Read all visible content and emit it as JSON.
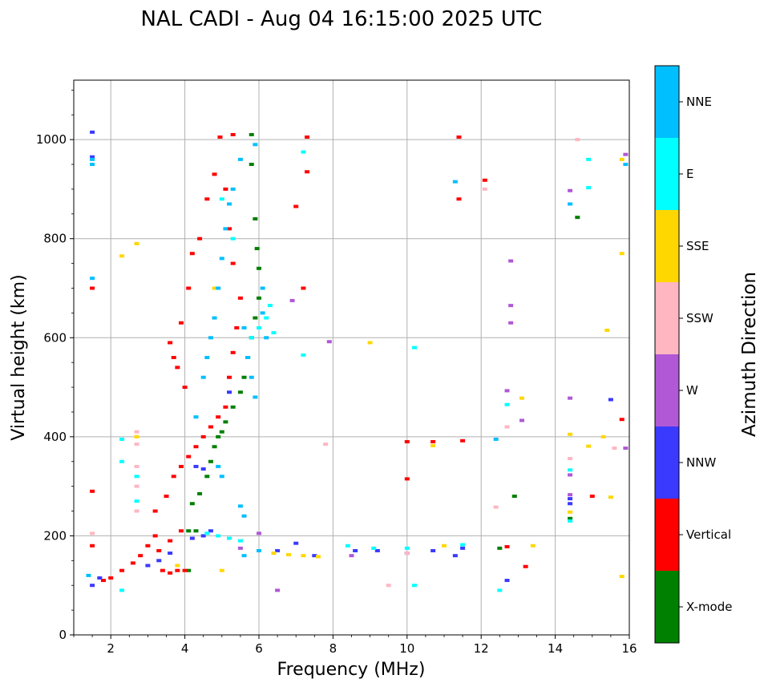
{
  "chart_data": {
    "type": "scatter",
    "title": "NAL CADI - Aug 04 16:15:00 2025 UTC",
    "xlabel": "Frequency (MHz)",
    "ylabel": "Virtual height (km)",
    "xlim": [
      1.0,
      16.0
    ],
    "ylim": [
      0,
      1120
    ],
    "x_ticks": [
      2,
      4,
      6,
      8,
      10,
      12,
      14,
      16
    ],
    "y_ticks": [
      0,
      200,
      400,
      600,
      800,
      1000
    ],
    "grid": true,
    "colorbar": {
      "label": "Azimuth Direction",
      "categories": [
        {
          "name": "X-mode",
          "color": "#008000"
        },
        {
          "name": "Vertical",
          "color": "#ff0000"
        },
        {
          "name": "NNW",
          "color": "#3a3aff"
        },
        {
          "name": "W",
          "color": "#b058d6"
        },
        {
          "name": "SSW",
          "color": "#ffb6c1"
        },
        {
          "name": "SSE",
          "color": "#ffd700"
        },
        {
          "name": "E",
          "color": "#00ffff"
        },
        {
          "name": "NNE",
          "color": "#00bfff"
        }
      ]
    },
    "series": [
      {
        "name": "X-mode",
        "points": [
          [
            4.2,
            265
          ],
          [
            4.4,
            285
          ],
          [
            4.6,
            320
          ],
          [
            4.7,
            350
          ],
          [
            4.8,
            380
          ],
          [
            4.9,
            400
          ],
          [
            5.0,
            410
          ],
          [
            5.1,
            430
          ],
          [
            5.3,
            460
          ],
          [
            5.5,
            490
          ],
          [
            5.6,
            520
          ],
          [
            5.7,
            560
          ],
          [
            5.8,
            600
          ],
          [
            5.9,
            640
          ],
          [
            6.0,
            680
          ],
          [
            6.0,
            740
          ],
          [
            5.95,
            780
          ],
          [
            5.9,
            840
          ],
          [
            5.8,
            950
          ],
          [
            5.8,
            1010
          ],
          [
            4.1,
            210
          ],
          [
            4.3,
            210
          ],
          [
            12.5,
            175
          ],
          [
            12.9,
            280
          ],
          [
            14.6,
            843
          ],
          [
            14.4,
            235
          ],
          [
            4.1,
            130
          ]
        ]
      },
      {
        "name": "Vertical",
        "points": [
          [
            1.5,
            290
          ],
          [
            1.5,
            700
          ],
          [
            1.5,
            180
          ],
          [
            1.8,
            110
          ],
          [
            2.0,
            115
          ],
          [
            2.3,
            130
          ],
          [
            2.6,
            145
          ],
          [
            2.8,
            160
          ],
          [
            3.0,
            180
          ],
          [
            3.2,
            200
          ],
          [
            3.4,
            130
          ],
          [
            3.6,
            125
          ],
          [
            3.8,
            130
          ],
          [
            4.0,
            130
          ],
          [
            3.2,
            250
          ],
          [
            3.5,
            280
          ],
          [
            3.7,
            320
          ],
          [
            3.9,
            340
          ],
          [
            4.1,
            360
          ],
          [
            4.3,
            380
          ],
          [
            4.5,
            400
          ],
          [
            4.7,
            420
          ],
          [
            4.9,
            440
          ],
          [
            3.3,
            170
          ],
          [
            3.6,
            190
          ],
          [
            3.9,
            210
          ],
          [
            4.0,
            500
          ],
          [
            3.8,
            540
          ],
          [
            3.7,
            560
          ],
          [
            3.6,
            590
          ],
          [
            3.9,
            630
          ],
          [
            4.1,
            700
          ],
          [
            4.2,
            770
          ],
          [
            4.4,
            800
          ],
          [
            4.6,
            880
          ],
          [
            4.8,
            930
          ],
          [
            4.95,
            1005
          ],
          [
            5.1,
            460
          ],
          [
            5.2,
            520
          ],
          [
            5.3,
            570
          ],
          [
            5.4,
            620
          ],
          [
            5.5,
            680
          ],
          [
            5.3,
            750
          ],
          [
            5.2,
            820
          ],
          [
            5.1,
            900
          ],
          [
            5.3,
            1010
          ],
          [
            7.0,
            865
          ],
          [
            7.3,
            935
          ],
          [
            7.3,
            1005
          ],
          [
            7.2,
            700
          ],
          [
            10.0,
            390
          ],
          [
            10.0,
            315
          ],
          [
            10.7,
            390
          ],
          [
            11.4,
            1005
          ],
          [
            11.4,
            880
          ],
          [
            11.5,
            392
          ],
          [
            12.1,
            918
          ],
          [
            12.7,
            178
          ],
          [
            13.2,
            138
          ],
          [
            15.0,
            280
          ],
          [
            15.8,
            435
          ]
        ]
      },
      {
        "name": "NNW",
        "points": [
          [
            1.5,
            1015
          ],
          [
            1.5,
            965
          ],
          [
            1.5,
            100
          ],
          [
            1.7,
            115
          ],
          [
            3.0,
            140
          ],
          [
            3.3,
            150
          ],
          [
            3.6,
            165
          ],
          [
            4.2,
            195
          ],
          [
            4.5,
            200
          ],
          [
            4.7,
            210
          ],
          [
            4.3,
            340
          ],
          [
            4.5,
            335
          ],
          [
            5.2,
            490
          ],
          [
            6.5,
            170
          ],
          [
            7.0,
            185
          ],
          [
            7.5,
            160
          ],
          [
            8.6,
            170
          ],
          [
            9.2,
            170
          ],
          [
            10.0,
            165
          ],
          [
            10.7,
            170
          ],
          [
            11.3,
            160
          ],
          [
            11.5,
            175
          ],
          [
            12.7,
            110
          ],
          [
            14.4,
            275
          ],
          [
            14.4,
            265
          ],
          [
            15.5,
            475
          ]
        ]
      },
      {
        "name": "W",
        "points": [
          [
            6.5,
            90
          ],
          [
            6.9,
            675
          ],
          [
            7.9,
            592
          ],
          [
            8.5,
            160
          ],
          [
            12.8,
            755
          ],
          [
            12.8,
            665
          ],
          [
            12.8,
            630
          ],
          [
            12.7,
            493
          ],
          [
            13.1,
            433
          ],
          [
            14.4,
            478
          ],
          [
            14.4,
            323
          ],
          [
            14.4,
            283
          ],
          [
            14.4,
            897
          ],
          [
            15.9,
            377
          ],
          [
            15.9,
            970
          ],
          [
            6.0,
            205
          ],
          [
            5.5,
            175
          ]
        ]
      },
      {
        "name": "SSW",
        "points": [
          [
            1.5,
            205
          ],
          [
            2.7,
            410
          ],
          [
            2.7,
            385
          ],
          [
            2.7,
            340
          ],
          [
            2.7,
            300
          ],
          [
            2.7,
            250
          ],
          [
            7.8,
            385
          ],
          [
            9.5,
            100
          ],
          [
            10.0,
            165
          ],
          [
            12.1,
            900
          ],
          [
            12.7,
            420
          ],
          [
            12.4,
            258
          ],
          [
            14.4,
            356
          ],
          [
            14.6,
            1000
          ],
          [
            15.6,
            377
          ]
        ]
      },
      {
        "name": "SSE",
        "points": [
          [
            2.3,
            765
          ],
          [
            2.7,
            790
          ],
          [
            2.7,
            400
          ],
          [
            6.4,
            165
          ],
          [
            6.8,
            162
          ],
          [
            7.2,
            160
          ],
          [
            7.6,
            158
          ],
          [
            9.0,
            590
          ],
          [
            10.7,
            382
          ],
          [
            11.0,
            180
          ],
          [
            13.1,
            478
          ],
          [
            13.4,
            180
          ],
          [
            14.4,
            405
          ],
          [
            14.4,
            248
          ],
          [
            14.9,
            381
          ],
          [
            15.3,
            400
          ],
          [
            15.5,
            278
          ],
          [
            15.4,
            615
          ],
          [
            15.8,
            770
          ],
          [
            15.8,
            960
          ],
          [
            15.8,
            118
          ],
          [
            5.0,
            130
          ],
          [
            3.8,
            140
          ],
          [
            4.8,
            700
          ]
        ]
      },
      {
        "name": "E",
        "points": [
          [
            2.3,
            395
          ],
          [
            2.3,
            350
          ],
          [
            2.7,
            320
          ],
          [
            2.7,
            270
          ],
          [
            2.3,
            90
          ],
          [
            4.6,
            205
          ],
          [
            4.9,
            200
          ],
          [
            5.2,
            195
          ],
          [
            5.5,
            190
          ],
          [
            6.2,
            640
          ],
          [
            6.3,
            665
          ],
          [
            6.4,
            610
          ],
          [
            6.0,
            620
          ],
          [
            5.8,
            600
          ],
          [
            7.2,
            975
          ],
          [
            7.2,
            565
          ],
          [
            8.4,
            180
          ],
          [
            9.1,
            175
          ],
          [
            10.0,
            175
          ],
          [
            10.2,
            580
          ],
          [
            10.2,
            100
          ],
          [
            11.5,
            182
          ],
          [
            12.5,
            90
          ],
          [
            12.7,
            465
          ],
          [
            14.4,
            333
          ],
          [
            14.4,
            230
          ],
          [
            14.9,
            960
          ],
          [
            14.9,
            903
          ],
          [
            5.0,
            880
          ],
          [
            5.3,
            800
          ]
        ]
      },
      {
        "name": "NNE",
        "points": [
          [
            1.5,
            960
          ],
          [
            1.5,
            950
          ],
          [
            1.5,
            720
          ],
          [
            1.4,
            120
          ],
          [
            4.3,
            440
          ],
          [
            4.5,
            520
          ],
          [
            4.6,
            560
          ],
          [
            4.7,
            600
          ],
          [
            4.8,
            640
          ],
          [
            4.9,
            700
          ],
          [
            5.0,
            760
          ],
          [
            5.1,
            820
          ],
          [
            5.2,
            870
          ],
          [
            5.3,
            900
          ],
          [
            5.5,
            960
          ],
          [
            5.9,
            990
          ],
          [
            5.6,
            620
          ],
          [
            5.7,
            560
          ],
          [
            5.8,
            520
          ],
          [
            5.9,
            480
          ],
          [
            6.1,
            700
          ],
          [
            6.1,
            650
          ],
          [
            6.2,
            600
          ],
          [
            4.9,
            340
          ],
          [
            5.0,
            320
          ],
          [
            5.5,
            260
          ],
          [
            5.6,
            240
          ],
          [
            11.3,
            915
          ],
          [
            12.4,
            395
          ],
          [
            14.4,
            870
          ],
          [
            15.9,
            950
          ],
          [
            5.6,
            160
          ],
          [
            6.0,
            170
          ]
        ]
      }
    ]
  }
}
